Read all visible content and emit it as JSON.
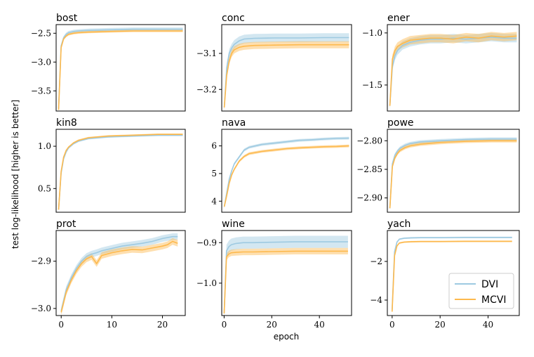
{
  "chart_data": {
    "type": "line",
    "ylabel": "test log-likelihood [higher is better]",
    "xlabel": "epoch",
    "colors": {
      "DVI": "#9ecae1",
      "MCVI": "#fdb94d"
    },
    "legend": {
      "position": "bottom-right",
      "entries": [
        "DVI",
        "MCVI"
      ]
    },
    "panels": [
      {
        "title": "bost",
        "xlim": [
          -1,
          51
        ],
        "ylim": [
          -3.85,
          -2.35
        ],
        "yticks": [
          -2.5,
          -3.0,
          -3.5
        ],
        "ytick_labels": [
          "−2.5",
          "−3.0",
          "−3.5"
        ],
        "xticks": [],
        "xtick_labels": [],
        "series": [
          {
            "name": "DVI",
            "x": [
              0,
              1,
              2,
              3,
              4,
              6,
              8,
              12,
              20,
              30,
              40,
              50
            ],
            "y": [
              -3.8,
              -2.72,
              -2.58,
              -2.52,
              -2.49,
              -2.47,
              -2.46,
              -2.45,
              -2.44,
              -2.43,
              -2.43,
              -2.43
            ],
            "band": 0.03
          },
          {
            "name": "MCVI",
            "x": [
              0,
              1,
              2,
              3,
              4,
              6,
              8,
              12,
              20,
              30,
              40,
              50
            ],
            "y": [
              -3.83,
              -2.75,
              -2.6,
              -2.55,
              -2.52,
              -2.5,
              -2.49,
              -2.48,
              -2.47,
              -2.46,
              -2.46,
              -2.46
            ],
            "band": 0.02
          }
        ]
      },
      {
        "title": "conc",
        "xlim": [
          -1,
          51
        ],
        "ylim": [
          -3.26,
          -3.02
        ],
        "yticks": [
          -3.1,
          -3.2
        ],
        "ytick_labels": [
          "−3.1",
          "−3.2"
        ],
        "xticks": [],
        "xtick_labels": [],
        "series": [
          {
            "name": "DVI",
            "x": [
              0,
              1,
              2,
              3,
              4,
              6,
              8,
              12,
              20,
              30,
              40,
              50
            ],
            "y": [
              -3.25,
              -3.14,
              -3.1,
              -3.085,
              -3.075,
              -3.065,
              -3.06,
              -3.058,
              -3.057,
              -3.057,
              -3.056,
              -3.056
            ],
            "band": 0.012
          },
          {
            "name": "MCVI",
            "x": [
              0,
              1,
              2,
              3,
              4,
              6,
              8,
              12,
              20,
              30,
              40,
              50
            ],
            "y": [
              -3.25,
              -3.16,
              -3.12,
              -3.1,
              -3.09,
              -3.083,
              -3.08,
              -3.078,
              -3.077,
              -3.076,
              -3.076,
              -3.076
            ],
            "band": 0.01
          }
        ]
      },
      {
        "title": "ener",
        "xlim": [
          -1,
          51
        ],
        "ylim": [
          -1.75,
          -0.92
        ],
        "yticks": [
          -1.0,
          -1.5
        ],
        "ytick_labels": [
          "−1.0",
          "−1.5"
        ],
        "xticks": [],
        "xtick_labels": [],
        "series": [
          {
            "name": "DVI",
            "x": [
              0,
              1,
              2,
              3,
              5,
              8,
              12,
              16,
              20,
              25,
              30,
              35,
              40,
              45,
              50
            ],
            "y": [
              -1.7,
              -1.32,
              -1.22,
              -1.17,
              -1.12,
              -1.09,
              -1.07,
              -1.06,
              -1.06,
              -1.05,
              -1.06,
              -1.05,
              -1.04,
              -1.05,
              -1.05
            ],
            "band": 0.04
          },
          {
            "name": "MCVI",
            "x": [
              0,
              1,
              2,
              3,
              5,
              8,
              12,
              16,
              20,
              25,
              30,
              35,
              40,
              45,
              50
            ],
            "y": [
              -1.7,
              -1.25,
              -1.17,
              -1.13,
              -1.1,
              -1.07,
              -1.06,
              -1.05,
              -1.05,
              -1.06,
              -1.04,
              -1.05,
              -1.03,
              -1.04,
              -1.03
            ],
            "band": 0.04
          }
        ]
      },
      {
        "title": "kin8",
        "xlim": [
          -1,
          51
        ],
        "ylim": [
          0.22,
          1.2
        ],
        "yticks": [
          1.0,
          0.5
        ],
        "ytick_labels": [
          "1.0",
          "0.5"
        ],
        "xticks": [],
        "xtick_labels": [],
        "series": [
          {
            "name": "DVI",
            "x": [
              0,
              1,
              2,
              3,
              4,
              6,
              8,
              12,
              20,
              30,
              40,
              50
            ],
            "y": [
              0.25,
              0.68,
              0.85,
              0.93,
              0.98,
              1.03,
              1.06,
              1.09,
              1.11,
              1.12,
              1.13,
              1.13
            ],
            "band": 0.01
          },
          {
            "name": "MCVI",
            "x": [
              0,
              1,
              2,
              3,
              4,
              6,
              8,
              12,
              20,
              30,
              40,
              50
            ],
            "y": [
              0.25,
              0.7,
              0.87,
              0.95,
              0.99,
              1.04,
              1.07,
              1.1,
              1.12,
              1.13,
              1.14,
              1.14
            ],
            "band": 0.01
          }
        ]
      },
      {
        "title": "nava",
        "xlim": [
          -1,
          51
        ],
        "ylim": [
          3.6,
          6.6
        ],
        "yticks": [
          6,
          5,
          4
        ],
        "ytick_labels": [
          "6",
          "5",
          "4"
        ],
        "xticks": [],
        "xtick_labels": [],
        "series": [
          {
            "name": "DVI",
            "x": [
              0,
              1,
              2,
              3,
              4,
              6,
              8,
              10,
              15,
              20,
              25,
              30,
              35,
              40,
              45,
              50
            ],
            "y": [
              3.8,
              4.3,
              4.8,
              5.1,
              5.35,
              5.6,
              5.85,
              5.95,
              6.05,
              6.1,
              6.15,
              6.2,
              6.22,
              6.25,
              6.27,
              6.28
            ],
            "band": 0.05
          },
          {
            "name": "MCVI",
            "x": [
              0,
              1,
              2,
              3,
              4,
              6,
              8,
              10,
              15,
              20,
              25,
              30,
              35,
              40,
              45,
              50
            ],
            "y": [
              3.8,
              4.2,
              4.65,
              4.95,
              5.15,
              5.45,
              5.62,
              5.72,
              5.8,
              5.85,
              5.9,
              5.93,
              5.95,
              5.97,
              5.98,
              6.0
            ],
            "band": 0.05
          }
        ]
      },
      {
        "title": "powe",
        "xlim": [
          -1,
          51
        ],
        "ylim": [
          -2.925,
          -2.78
        ],
        "yticks": [
          -2.8,
          -2.85,
          -2.9
        ],
        "ytick_labels": [
          "−2.80",
          "−2.85",
          "−2.90"
        ],
        "xticks": [],
        "xtick_labels": [],
        "series": [
          {
            "name": "DVI",
            "x": [
              0,
              1,
              2,
              3,
              4,
              6,
              8,
              12,
              20,
              30,
              40,
              50
            ],
            "y": [
              -2.918,
              -2.84,
              -2.825,
              -2.818,
              -2.813,
              -2.808,
              -2.805,
              -2.802,
              -2.8,
              -2.798,
              -2.797,
              -2.797
            ],
            "band": 0.003
          },
          {
            "name": "MCVI",
            "x": [
              0,
              1,
              2,
              3,
              4,
              6,
              8,
              12,
              20,
              30,
              40,
              50
            ],
            "y": [
              -2.918,
              -2.845,
              -2.83,
              -2.822,
              -2.817,
              -2.812,
              -2.809,
              -2.806,
              -2.803,
              -2.801,
              -2.8,
              -2.8
            ],
            "band": 0.003
          }
        ]
      },
      {
        "title": "prot",
        "xlim": [
          -1,
          24.5
        ],
        "ylim": [
          -3.015,
          -2.835
        ],
        "yticks": [
          -2.9,
          -3.0
        ],
        "ytick_labels": [
          "−2.9",
          "−3.0"
        ],
        "xticks": [
          0,
          10,
          20
        ],
        "xtick_labels": [
          "0",
          "10",
          "20"
        ],
        "series": [
          {
            "name": "DVI",
            "x": [
              0,
              1,
              2,
              3,
              4,
              5,
              6,
              7,
              8,
              10,
              12,
              14,
              16,
              18,
              20,
              22,
              23
            ],
            "y": [
              -3.005,
              -2.96,
              -2.935,
              -2.915,
              -2.9,
              -2.89,
              -2.885,
              -2.882,
              -2.878,
              -2.873,
              -2.868,
              -2.865,
              -2.862,
              -2.858,
              -2.852,
              -2.848,
              -2.848
            ],
            "band": 0.007
          },
          {
            "name": "MCVI",
            "x": [
              0,
              1,
              2,
              3,
              4,
              5,
              6,
              7,
              8,
              10,
              12,
              14,
              16,
              18,
              20,
              21,
              22,
              23
            ],
            "y": [
              -3.008,
              -2.965,
              -2.94,
              -2.92,
              -2.905,
              -2.895,
              -2.89,
              -2.905,
              -2.888,
              -2.882,
              -2.878,
              -2.875,
              -2.876,
              -2.872,
              -2.868,
              -2.865,
              -2.858,
              -2.862
            ],
            "band": 0.007
          }
        ]
      },
      {
        "title": "wine",
        "xlim": [
          -1,
          53.5
        ],
        "ylim": [
          -1.08,
          -0.87
        ],
        "yticks": [
          -0.9,
          -1.0
        ],
        "ytick_labels": [
          "−0.9",
          "−1.0"
        ],
        "xticks": [
          0,
          20,
          40
        ],
        "xtick_labels": [
          "0",
          "20",
          "40"
        ],
        "series": [
          {
            "name": "DVI",
            "x": [
              0,
              1,
              2,
              3,
              5,
              8,
              12,
              20,
              30,
              40,
              50,
              52
            ],
            "y": [
              -1.075,
              -0.92,
              -0.91,
              -0.905,
              -0.902,
              -0.9,
              -0.9,
              -0.899,
              -0.898,
              -0.898,
              -0.898,
              -0.898
            ],
            "band": 0.015
          },
          {
            "name": "MCVI",
            "x": [
              0,
              1,
              2,
              3,
              5,
              8,
              12,
              20,
              30,
              40,
              50,
              52
            ],
            "y": [
              -1.075,
              -0.935,
              -0.928,
              -0.925,
              -0.924,
              -0.923,
              -0.923,
              -0.922,
              -0.921,
              -0.921,
              -0.921,
              -0.921
            ],
            "band": 0.008
          }
        ]
      },
      {
        "title": "yach",
        "xlim": [
          -2,
          53
        ],
        "ylim": [
          -4.8,
          -0.4
        ],
        "yticks": [
          -2,
          -4
        ],
        "ytick_labels": [
          "−2",
          "−4"
        ],
        "xticks": [
          0,
          20,
          40
        ],
        "xtick_labels": [
          "0",
          "20",
          "40"
        ],
        "series": [
          {
            "name": "DVI",
            "x": [
              0,
              1,
              2,
              3,
              5,
              8,
              12,
              20,
              30,
              40,
              50
            ],
            "y": [
              -4.5,
              -1.5,
              -1.0,
              -0.85,
              -0.8,
              -0.78,
              -0.77,
              -0.77,
              -0.76,
              -0.76,
              -0.76
            ],
            "band": 0.04
          },
          {
            "name": "MCVI",
            "x": [
              0,
              1,
              2,
              3,
              5,
              8,
              12,
              20,
              30,
              40,
              50
            ],
            "y": [
              -4.6,
              -1.7,
              -1.2,
              -1.05,
              -1.0,
              -0.98,
              -0.97,
              -0.97,
              -0.96,
              -0.96,
              -0.96
            ],
            "band": 0.04
          }
        ]
      }
    ]
  }
}
